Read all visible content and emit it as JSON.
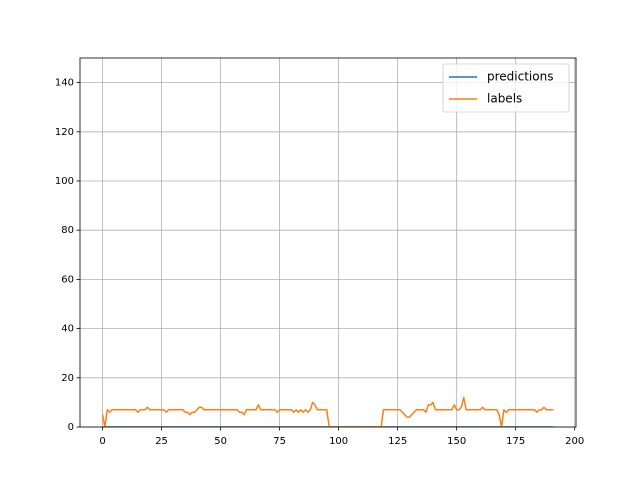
{
  "chart_data": {
    "type": "line",
    "x": [
      0,
      1,
      2,
      3,
      4,
      5,
      6,
      7,
      8,
      9,
      10,
      11,
      12,
      13,
      14,
      15,
      16,
      17,
      18,
      19,
      20,
      21,
      22,
      23,
      24,
      25,
      26,
      27,
      28,
      29,
      30,
      31,
      32,
      33,
      34,
      35,
      36,
      37,
      38,
      39,
      40,
      41,
      42,
      43,
      44,
      45,
      46,
      47,
      48,
      49,
      50,
      51,
      52,
      53,
      54,
      55,
      56,
      57,
      58,
      59,
      60,
      61,
      62,
      63,
      64,
      65,
      66,
      67,
      68,
      69,
      70,
      71,
      72,
      73,
      74,
      75,
      76,
      77,
      78,
      79,
      80,
      81,
      82,
      83,
      84,
      85,
      86,
      87,
      88,
      89,
      90,
      91,
      92,
      93,
      94,
      95,
      96,
      97,
      98,
      99,
      100,
      101,
      102,
      103,
      104,
      105,
      106,
      107,
      108,
      109,
      110,
      111,
      112,
      113,
      114,
      115,
      116,
      117,
      118,
      119,
      120,
      121,
      122,
      123,
      124,
      125,
      126,
      127,
      128,
      129,
      130,
      131,
      132,
      133,
      134,
      135,
      136,
      137,
      138,
      139,
      140,
      141,
      142,
      143,
      144,
      145,
      146,
      147,
      148,
      149,
      150,
      151,
      152,
      153,
      154,
      155,
      156,
      157,
      158,
      159,
      160,
      161,
      162,
      163,
      164,
      165,
      166,
      167,
      168,
      169,
      170,
      171,
      172,
      173,
      174,
      175,
      176,
      177,
      178,
      179,
      180,
      181,
      182,
      183,
      184,
      185,
      186,
      187,
      188,
      189,
      190,
      191
    ],
    "series": [
      {
        "name": "predictions",
        "color": "#1f77b4",
        "values": [
          0,
          0,
          0,
          0,
          0,
          0,
          0,
          0,
          0,
          0,
          0,
          0,
          0,
          0,
          0,
          0,
          0,
          0,
          0,
          0,
          0,
          0,
          0,
          0,
          0,
          0,
          0,
          0,
          0,
          0,
          0,
          0,
          0,
          0,
          0,
          0,
          0,
          0,
          0,
          0,
          0,
          0,
          0,
          0,
          0,
          0,
          0,
          0,
          0,
          0,
          0,
          0,
          0,
          0,
          0,
          0,
          0,
          0,
          0,
          0,
          0,
          0,
          0,
          0,
          0,
          0,
          0,
          0,
          0,
          0,
          0,
          0,
          0,
          0,
          0,
          0,
          0,
          0,
          0,
          0,
          0,
          0,
          0,
          0,
          0,
          0,
          0,
          0,
          0,
          0,
          0,
          0,
          0,
          0,
          0,
          0,
          0,
          0,
          0,
          0,
          0,
          0,
          0,
          0,
          0,
          0,
          0,
          0,
          0,
          0,
          0,
          0,
          0,
          0,
          0,
          0,
          0,
          0,
          0,
          0,
          0,
          0,
          0,
          0,
          0,
          0,
          0,
          0,
          0,
          0,
          0,
          0,
          0,
          0,
          0,
          0,
          0,
          0,
          0,
          0,
          0,
          0,
          0,
          0,
          0,
          0,
          0,
          0,
          0,
          0,
          0,
          0,
          0,
          0,
          0,
          0,
          0,
          0,
          0,
          0,
          0,
          0,
          0,
          0,
          0,
          0,
          0,
          0,
          0,
          0,
          0,
          0,
          0,
          0,
          0,
          0,
          0,
          0,
          0,
          0,
          0,
          0,
          0,
          0,
          0,
          0,
          0,
          0,
          0,
          0,
          0,
          0
        ]
      },
      {
        "name": "labels",
        "color": "#ff7f0e",
        "values": [
          5,
          0,
          7,
          6,
          7,
          7,
          7,
          7,
          7,
          7,
          7,
          7,
          7,
          7,
          7,
          6,
          7,
          7,
          7,
          8,
          7,
          7,
          7,
          7,
          7,
          7,
          7,
          6,
          7,
          7,
          7,
          7,
          7,
          7,
          7,
          6,
          6,
          5,
          6,
          6,
          7,
          8,
          8,
          7,
          7,
          7,
          7,
          7,
          7,
          7,
          7,
          7,
          7,
          7,
          7,
          7,
          7,
          7,
          6,
          6,
          5,
          7,
          7,
          7,
          7,
          7,
          9,
          7,
          7,
          7,
          7,
          7,
          7,
          7,
          6,
          7,
          7,
          7,
          7,
          7,
          7,
          6,
          7,
          6,
          7,
          6,
          7,
          6,
          7,
          10,
          9,
          7,
          7,
          7,
          7,
          7,
          0,
          0,
          0,
          0,
          0,
          0,
          0,
          0,
          0,
          0,
          0,
          0,
          0,
          0,
          0,
          0,
          0,
          0,
          0,
          0,
          0,
          0,
          0,
          7,
          7,
          7,
          7,
          7,
          7,
          7,
          7,
          6,
          5,
          4,
          4,
          5,
          6,
          7,
          7,
          7,
          7,
          6,
          9,
          9,
          10,
          7,
          7,
          7,
          7,
          7,
          7,
          7,
          7,
          9,
          7,
          7,
          8,
          12,
          7,
          7,
          7,
          7,
          7,
          7,
          7,
          8,
          7,
          7,
          7,
          7,
          7,
          7,
          5,
          0,
          7,
          6,
          7,
          7,
          7,
          7,
          7,
          7,
          7,
          7,
          7,
          7,
          7,
          7,
          6,
          7,
          7,
          8,
          7,
          7,
          7,
          7
        ]
      }
    ],
    "xlim": [
      -9.55,
      200.55
    ],
    "xticks": [
      0,
      25,
      50,
      75,
      100,
      125,
      150,
      175,
      200
    ],
    "ylim": [
      0,
      150
    ],
    "yticks": [
      0,
      20,
      40,
      60,
      80,
      100,
      120,
      140
    ],
    "grid": true,
    "legend": "upper-right"
  }
}
